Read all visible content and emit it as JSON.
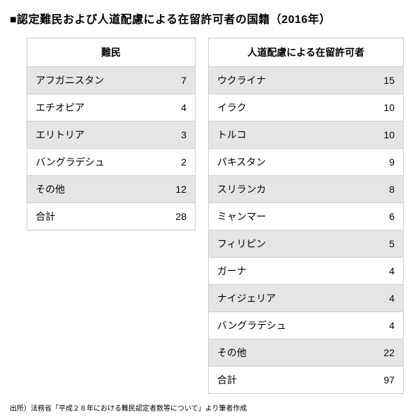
{
  "title": "■認定難民および人道配慮による在留許可者の国籍（2016年）",
  "tables": {
    "left": {
      "header": "難民",
      "rows": [
        {
          "label": "アフガニスタン",
          "value": 7,
          "stripe": true
        },
        {
          "label": "エチオピア",
          "value": 4,
          "stripe": false
        },
        {
          "label": "エリトリア",
          "value": 3,
          "stripe": true
        },
        {
          "label": "バングラデシュ",
          "value": 2,
          "stripe": false
        },
        {
          "label": "その他",
          "value": 12,
          "stripe": true
        },
        {
          "label": "合計",
          "value": 28,
          "stripe": false
        }
      ]
    },
    "right": {
      "header": "人道配慮による在留許可者",
      "rows": [
        {
          "label": "ウクライナ",
          "value": 15,
          "stripe": true
        },
        {
          "label": "イラク",
          "value": 10,
          "stripe": false
        },
        {
          "label": "トルコ",
          "value": 10,
          "stripe": true
        },
        {
          "label": "パキスタン",
          "value": 9,
          "stripe": false
        },
        {
          "label": "スリランカ",
          "value": 8,
          "stripe": true
        },
        {
          "label": "ミャンマー",
          "value": 6,
          "stripe": false
        },
        {
          "label": "フィリピン",
          "value": 5,
          "stripe": true
        },
        {
          "label": "ガーナ",
          "value": 4,
          "stripe": false
        },
        {
          "label": "ナイジェリア",
          "value": 4,
          "stripe": true
        },
        {
          "label": "バングラデシュ",
          "value": 4,
          "stripe": false
        },
        {
          "label": "その他",
          "value": 22,
          "stripe": true
        },
        {
          "label": "合計",
          "value": 97,
          "stripe": false
        }
      ]
    }
  },
  "source": "出所）法務省「平成２８年における難民認定者数等について」より筆者作成",
  "style": {
    "stripe_color": "#e5e5e5",
    "border_color": "#cccccc",
    "background_color": "#ffffff",
    "title_fontsize": 16,
    "cell_fontsize": 14,
    "source_fontsize": 10
  }
}
